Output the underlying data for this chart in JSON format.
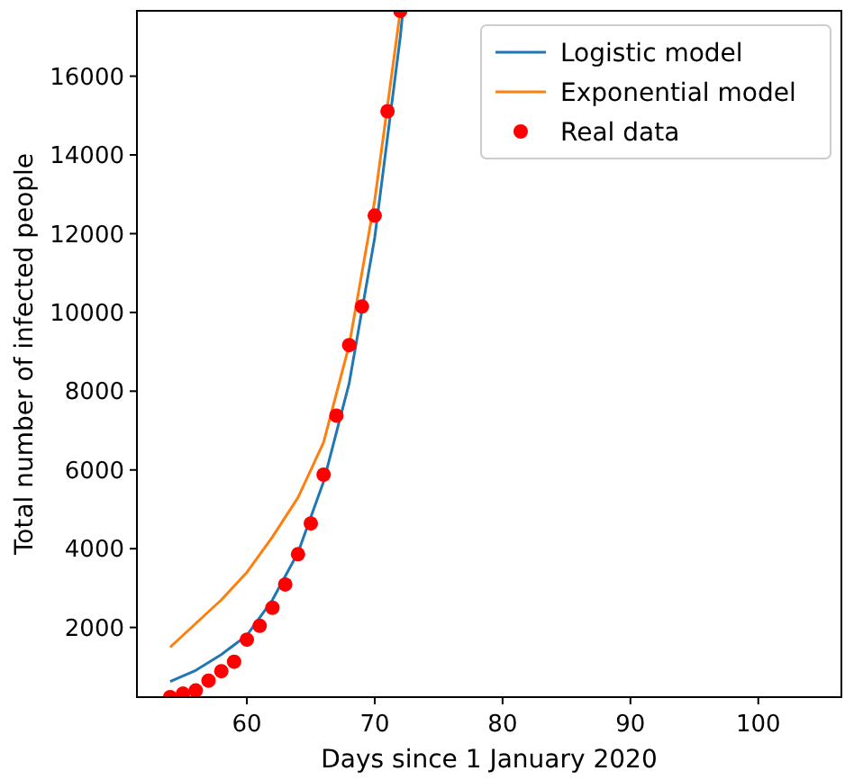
{
  "chart_data": {
    "type": "line",
    "xlabel": "Days since 1 January 2020",
    "ylabel": "Total number of infected people",
    "xlim": [
      51.4,
      106.5
    ],
    "ylim": [
      230,
      17660
    ],
    "xticks": [
      60,
      70,
      80,
      90,
      100
    ],
    "yticks": [
      2000,
      4000,
      6000,
      8000,
      10000,
      12000,
      14000,
      16000
    ],
    "grid": false,
    "legend": "top right",
    "series": [
      {
        "name": "Logistic model",
        "color": "#1f77b4",
        "marker": "none",
        "x": [
          54,
          56,
          58,
          60,
          62,
          64,
          66,
          68,
          70,
          72,
          72.2
        ],
        "values": [
          630,
          910,
          1310,
          1800,
          2700,
          3900,
          5700,
          8200,
          11900,
          17000,
          17660
        ]
      },
      {
        "name": "Exponential model",
        "color": "#ff7f0e",
        "marker": "none",
        "x": [
          54,
          56,
          58,
          60,
          62,
          64,
          66,
          68,
          70,
          72
        ],
        "values": [
          1500,
          2100,
          2700,
          3400,
          4300,
          5300,
          6700,
          9170,
          12850,
          17660
        ]
      },
      {
        "name": "Real data",
        "color": "#ff0000",
        "type": "scatter",
        "marker": "circle",
        "x": [
          54,
          55,
          56,
          57,
          58,
          59,
          60,
          61,
          62,
          63,
          64,
          65,
          66,
          67,
          68,
          69,
          70,
          71,
          72
        ],
        "values": [
          230,
          320,
          400,
          650,
          890,
          1130,
          1690,
          2040,
          2500,
          3090,
          3860,
          4640,
          5880,
          7380,
          9170,
          10150,
          12460,
          15110,
          17660
        ]
      }
    ]
  }
}
